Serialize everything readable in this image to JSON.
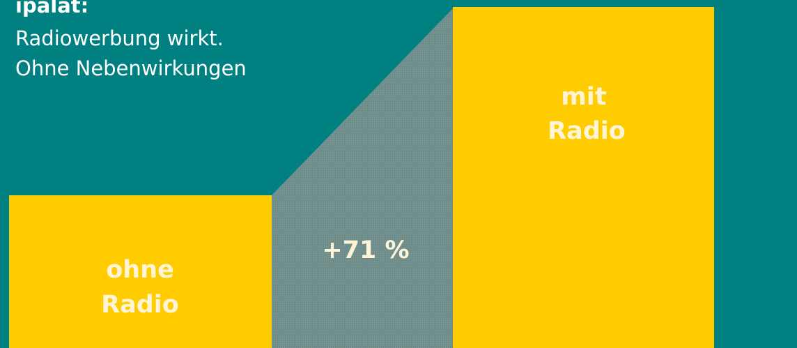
{
  "header": {
    "title": "ipalat:",
    "lines": [
      "Radiowerbung wirkt.",
      "Ohne Nebenwirkungen"
    ]
  },
  "bars": [
    {
      "label": [
        "ohne",
        "Radio"
      ]
    },
    {
      "label": [
        "mit",
        "Radio"
      ]
    }
  ],
  "annotation": "+71 %"
}
